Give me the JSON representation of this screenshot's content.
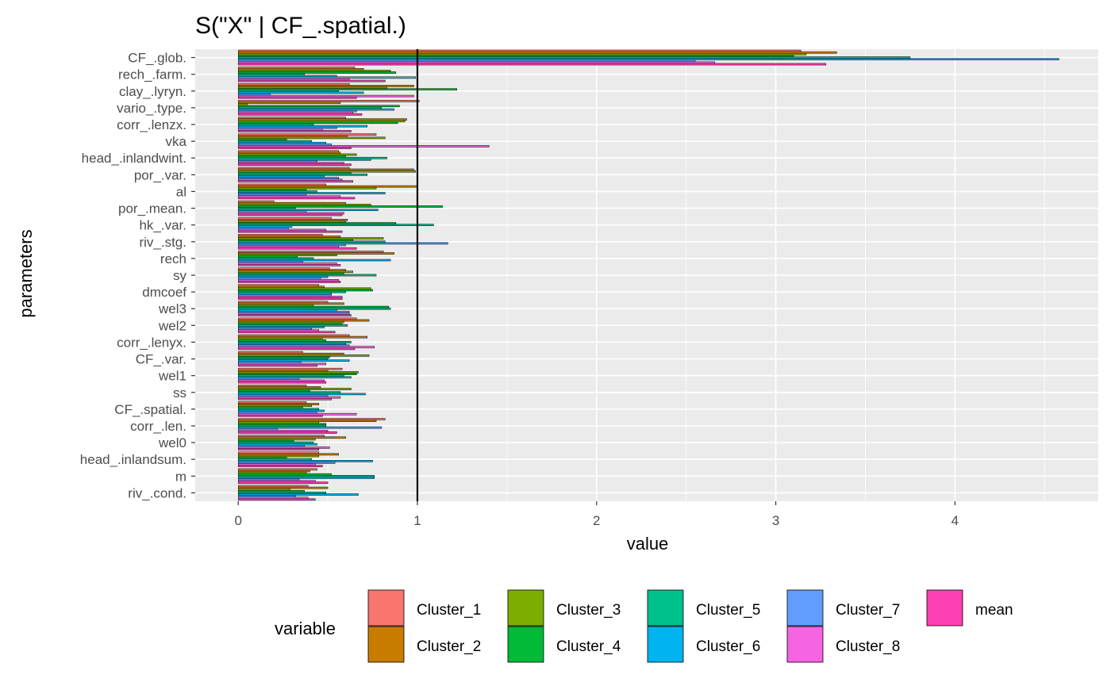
{
  "chart_data": {
    "type": "bar",
    "orientation": "horizontal",
    "title": "S(\"X\" | CF_.spatial.)",
    "xlabel": "value",
    "ylabel": "parameters",
    "xlim": [
      -0.24,
      4.8
    ],
    "xticks": [
      "0",
      "1",
      "2",
      "3",
      "4"
    ],
    "reference_line": 1,
    "grid": true,
    "legend_position": "bottom",
    "legend_title": "variable",
    "categories": [
      "CF_.glob.",
      "rech_.farm.",
      "clay_.lyryn.",
      "vario_.type.",
      "corr_.lenzx.",
      "vka",
      "head_.inlandwint.",
      "por_.var.",
      "al",
      "por_.mean.",
      "hk_.var.",
      "riv_.stg.",
      "rech",
      "sy",
      "dmcoef",
      "wel3",
      "wel2",
      "corr_.lenyx.",
      "CF_.var.",
      "wel1",
      "ss",
      "CF_.spatial.",
      "corr_.len.",
      "wel0",
      "head_.inlandsum.",
      "m",
      "riv_.cond."
    ],
    "series": [
      {
        "name": "Cluster_1",
        "color": "#F8766D",
        "values": [
          3.14,
          0.65,
          0.62,
          1.01,
          0.6,
          0.77,
          0.56,
          0.62,
          0.49,
          0.2,
          0.52,
          0.47,
          0.81,
          0.51,
          0.45,
          0.5,
          0.66,
          0.62,
          0.36,
          0.58,
          0.38,
          0.38,
          0.82,
          0.48,
          0.45,
          0.44,
          0.39
        ]
      },
      {
        "name": "Cluster_2",
        "color": "#C77C00",
        "values": [
          3.34,
          0.7,
          0.98,
          0.57,
          0.94,
          0.61,
          0.57,
          0.98,
          1.0,
          0.6,
          0.61,
          0.57,
          0.87,
          0.6,
          0.48,
          0.59,
          0.73,
          0.72,
          0.59,
          0.5,
          0.46,
          0.45,
          0.77,
          0.6,
          0.56,
          0.4,
          0.5
        ]
      },
      {
        "name": "Cluster_3",
        "color": "#7CAE00",
        "values": [
          3.17,
          0.85,
          0.83,
          0.05,
          0.93,
          0.82,
          0.66,
          0.99,
          0.77,
          0.74,
          0.6,
          0.81,
          0.55,
          0.64,
          0.74,
          0.42,
          0.59,
          0.47,
          0.73,
          0.67,
          0.63,
          0.41,
          0.45,
          0.43,
          0.45,
          0.38,
          0.29
        ]
      },
      {
        "name": "Cluster_4",
        "color": "#00BA38",
        "values": [
          3.1,
          0.88,
          1.22,
          0.9,
          0.89,
          0.27,
          0.6,
          0.63,
          0.38,
          1.14,
          0.88,
          0.64,
          0.33,
          0.59,
          0.75,
          0.84,
          0.58,
          0.49,
          0.51,
          0.66,
          0.4,
          0.36,
          0.49,
          0.31,
          0.27,
          0.52,
          0.37
        ]
      },
      {
        "name": "Cluster_5",
        "color": "#00C08B",
        "values": [
          3.75,
          0.37,
          0.56,
          0.8,
          0.42,
          0.41,
          0.83,
          0.72,
          0.44,
          0.32,
          1.09,
          0.82,
          0.42,
          0.77,
          0.6,
          0.85,
          0.61,
          0.63,
          0.5,
          0.59,
          0.57,
          0.45,
          0.49,
          0.42,
          0.41,
          0.76,
          0.49
        ]
      },
      {
        "name": "Cluster_6",
        "color": "#00B4EF",
        "values": [
          4.58,
          0.55,
          0.7,
          0.87,
          0.72,
          0.49,
          0.74,
          0.48,
          0.82,
          0.78,
          0.3,
          1.17,
          0.85,
          0.5,
          0.52,
          0.55,
          0.48,
          0.6,
          0.62,
          0.63,
          0.71,
          0.48,
          0.8,
          0.44,
          0.75,
          0.76,
          0.67
        ]
      },
      {
        "name": "Cluster_7",
        "color": "#619CFF",
        "values": [
          2.55,
          0.99,
          0.18,
          0.66,
          0.55,
          0.52,
          0.44,
          0.56,
          0.38,
          0.38,
          0.28,
          0.6,
          0.36,
          0.46,
          0.52,
          0.62,
          0.41,
          0.62,
          0.35,
          0.34,
          0.5,
          0.44,
          0.22,
          0.37,
          0.54,
          0.34,
          0.32
        ]
      },
      {
        "name": "Cluster_8",
        "color": "#F564E3",
        "values": [
          2.66,
          0.62,
          0.98,
          0.64,
          0.47,
          1.4,
          0.59,
          0.58,
          0.57,
          0.59,
          0.49,
          0.56,
          0.55,
          0.56,
          0.58,
          0.62,
          0.45,
          0.76,
          0.49,
          0.48,
          0.57,
          0.66,
          0.5,
          0.51,
          0.43,
          0.43,
          0.39
        ]
      },
      {
        "name": "mean",
        "color": "#FF40B4",
        "values": [
          3.28,
          0.82,
          0.66,
          0.69,
          0.63,
          0.63,
          0.63,
          0.64,
          0.65,
          0.58,
          0.58,
          0.66,
          0.57,
          0.57,
          0.58,
          0.63,
          0.54,
          0.65,
          0.44,
          0.49,
          0.52,
          0.47,
          0.55,
          0.45,
          0.47,
          0.5,
          0.43
        ]
      }
    ]
  }
}
